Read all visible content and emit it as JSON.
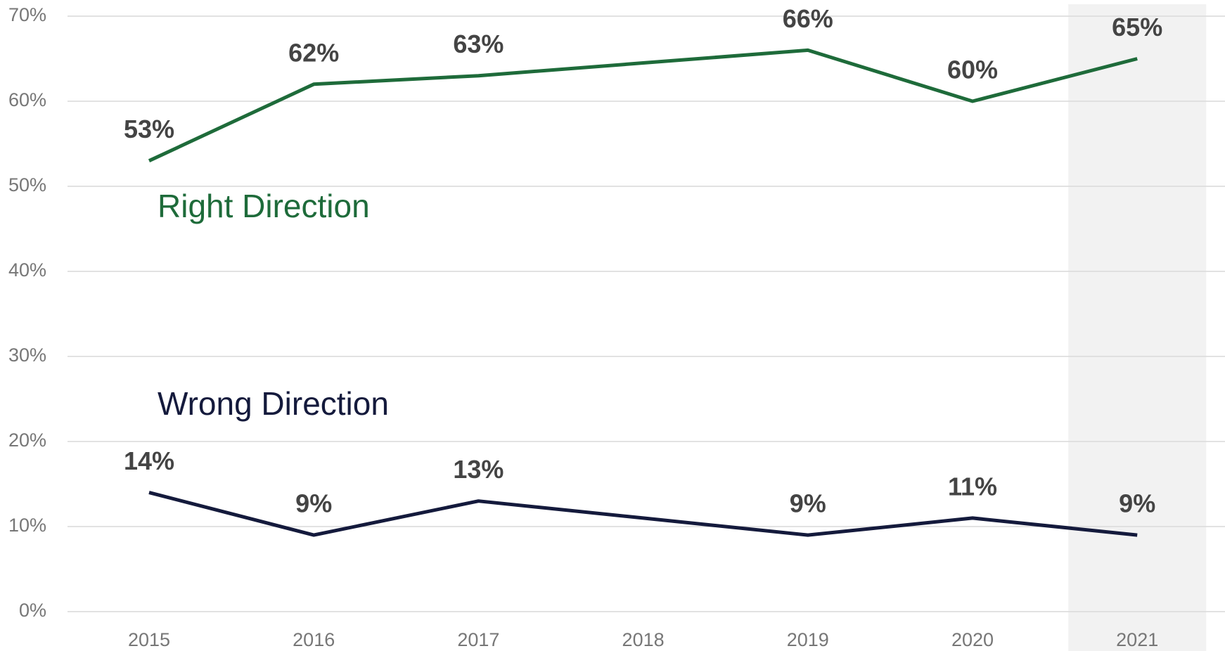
{
  "chart_data": {
    "type": "line",
    "categories": [
      "2015",
      "2016",
      "2017",
      "2018",
      "2019",
      "2020",
      "2021"
    ],
    "series": [
      {
        "name": "Right Direction",
        "color": "#1e6b3a",
        "values": [
          53,
          62,
          63,
          64.5,
          66,
          60,
          65
        ],
        "value_labels": [
          "53%",
          "62%",
          "63%",
          null,
          "66%",
          "60%",
          "65%"
        ]
      },
      {
        "name": "Wrong Direction",
        "color": "#141a3c",
        "values": [
          14,
          9,
          13,
          11,
          9,
          11,
          9
        ],
        "value_labels": [
          "14%",
          "9%",
          "13%",
          null,
          "9%",
          "11%",
          "9%"
        ]
      }
    ],
    "ylim": [
      0,
      70
    ],
    "yticks": [
      {
        "value": 0,
        "label": "0%"
      },
      {
        "value": 10,
        "label": "10%"
      },
      {
        "value": 20,
        "label": "20%"
      },
      {
        "value": 30,
        "label": "30%"
      },
      {
        "value": 40,
        "label": "40%"
      },
      {
        "value": 50,
        "label": "50%"
      },
      {
        "value": 60,
        "label": "60%"
      },
      {
        "value": 70,
        "label": "70%"
      }
    ],
    "grid": true
  }
}
